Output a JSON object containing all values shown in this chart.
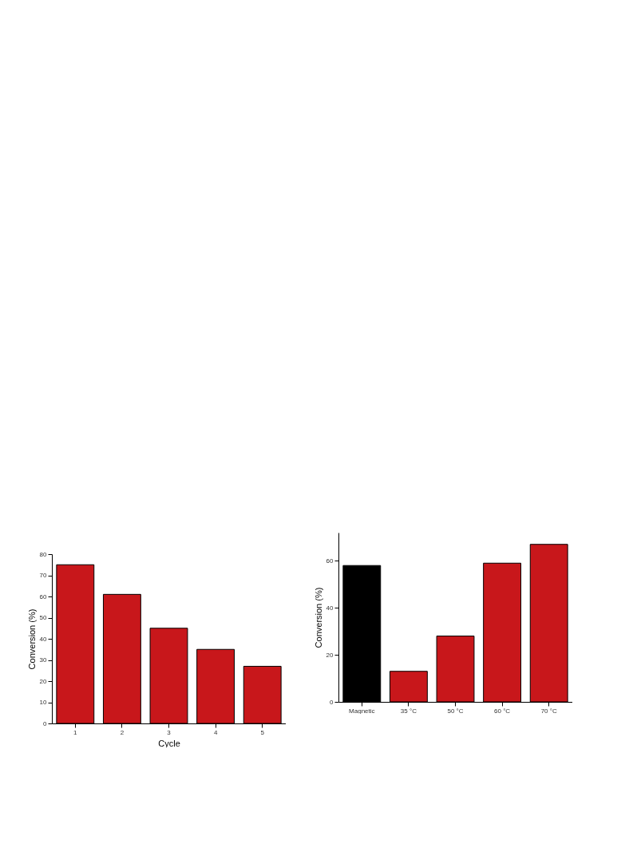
{
  "chart_data": [
    {
      "type": "bar",
      "xlabel": "Cycle",
      "ylabel": "Conversion (%)",
      "categories": [
        "1",
        "2",
        "3",
        "4",
        "5"
      ],
      "values": [
        75,
        61,
        45,
        35,
        27
      ],
      "color": "#c8171b",
      "ylim": [
        0,
        80
      ],
      "yticks": [
        0,
        10,
        20,
        30,
        40,
        50,
        60,
        70,
        80
      ],
      "grid": false
    },
    {
      "type": "bar",
      "ylabel": "Conversion (%)",
      "categories": [
        "Magnetic",
        "35 °C",
        "50 °C",
        "60 °C",
        "70 °C"
      ],
      "values": [
        58,
        13,
        28,
        59,
        67
      ],
      "colors": [
        "#000000",
        "#c8171b",
        "#c8171b",
        "#c8171b",
        "#c8171b"
      ],
      "ylim": [
        0,
        72
      ],
      "yticks": [
        0,
        20,
        40,
        60
      ],
      "grid": false
    }
  ]
}
